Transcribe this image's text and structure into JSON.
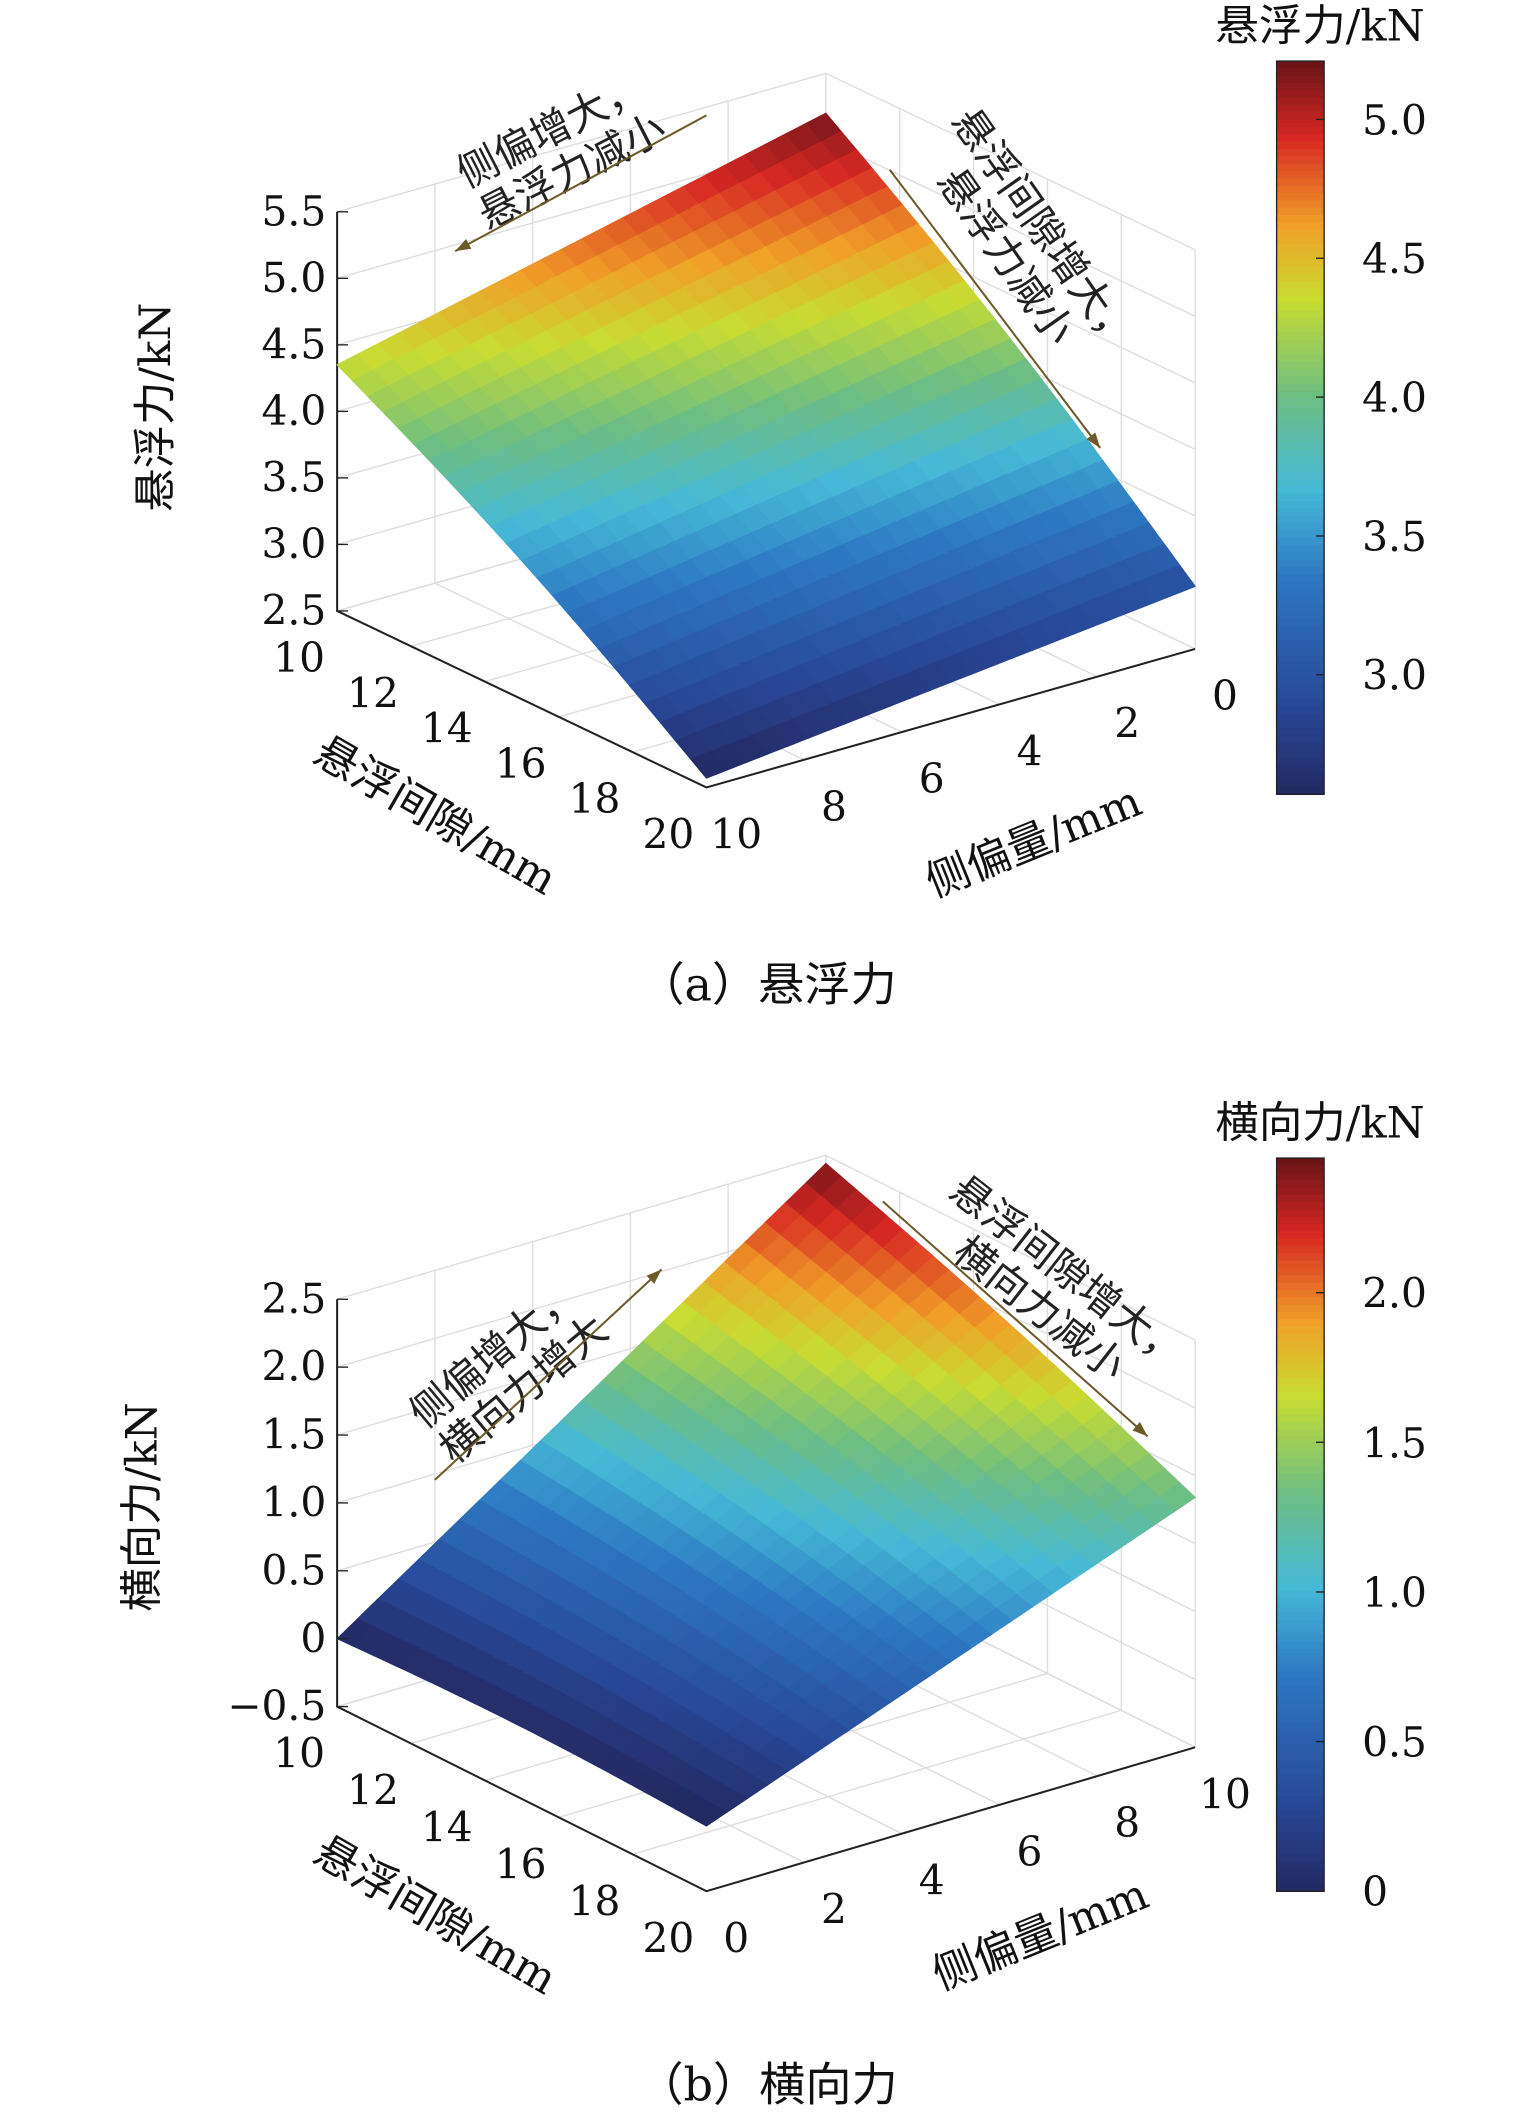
{
  "chart_data": [
    {
      "type": "surface",
      "id": "a",
      "caption": "（a）悬浮力",
      "zlabel": "悬浮力/kN",
      "xlabel": "悬浮间隙/mm",
      "ylabel": "侧偏量/mm",
      "x_ticks": [
        "10",
        "12",
        "14",
        "16",
        "18",
        "20"
      ],
      "y_ticks": [
        "0",
        "2",
        "4",
        "6",
        "8",
        "10"
      ],
      "z_ticks": [
        "2.5",
        "3.0",
        "3.5",
        "4.0",
        "4.5",
        "5.0",
        "5.5"
      ],
      "xlim": [
        10,
        20
      ],
      "ylim": [
        0,
        10
      ],
      "zlim": [
        2.5,
        5.5
      ],
      "corners": {
        "gap10_offset0": 5.2,
        "gap10_offset10": 4.35,
        "gap20_offset0": 2.97,
        "gap20_offset10": 2.57
      },
      "colorbar": {
        "title": "悬浮力/kN",
        "range": [
          2.57,
          5.21
        ],
        "ticks": [
          "3.0",
          "3.5",
          "4.0",
          "4.5",
          "5.0"
        ]
      },
      "annotations": [
        {
          "lines": [
            "侧偏增大，",
            "悬浮力减小"
          ]
        },
        {
          "lines": [
            "悬浮间隙增大，",
            "悬浮力减小"
          ]
        }
      ]
    },
    {
      "type": "surface",
      "id": "b",
      "caption": "（b）横向力",
      "zlabel": "横向力/kN",
      "xlabel": "悬浮间隙/mm",
      "ylabel": "侧偏量/mm",
      "x_ticks": [
        "10",
        "12",
        "14",
        "16",
        "18",
        "20"
      ],
      "y_ticks": [
        "0",
        "2",
        "4",
        "6",
        "8",
        "10"
      ],
      "z_ticks": [
        "−0.5",
        "0",
        "0.5",
        "1.0",
        "1.5",
        "2.0",
        "2.5"
      ],
      "xlim": [
        10,
        20
      ],
      "ylim": [
        0,
        10
      ],
      "zlim": [
        -0.5,
        2.5
      ],
      "corners": {
        "gap10_offset0": 0.0,
        "gap10_offset10": 2.44,
        "gap20_offset0": -0.02,
        "gap20_offset10": 1.34
      },
      "colorbar": {
        "title": "横向力/kN",
        "range": [
          0,
          2.45
        ],
        "ticks": [
          "0",
          "0.5",
          "1.0",
          "1.5",
          "2.0"
        ]
      },
      "annotations": [
        {
          "lines": [
            "侧偏增大，",
            "横向力增大"
          ]
        },
        {
          "lines": [
            "悬浮间隙增大，",
            "横向力减小"
          ]
        }
      ]
    }
  ]
}
